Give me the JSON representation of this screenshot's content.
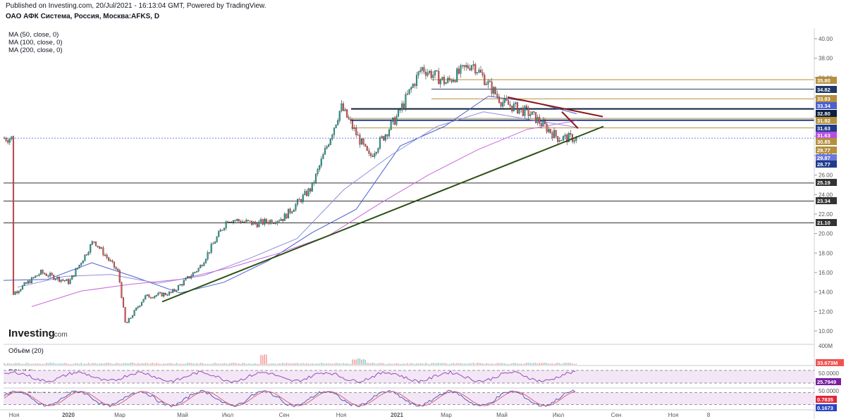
{
  "header": {
    "published": "Published on Investing.com, 20/Jul/2021 - 16:13:04 GMT, Powered by TradingView.",
    "symbol": "ОАО АФК Система, Россия, Москва:AFKS, D"
  },
  "indicators": [
    "MA (50, close, 0)",
    "MA (100, close, 0)",
    "MA (200, close, 0)"
  ],
  "logo": {
    "main": "Investing",
    "suffix": ".com"
  },
  "colors": {
    "up": "#26a69a",
    "down": "#ef5350",
    "ma50": "#4b5fd0",
    "ma100": "#8e8fe0",
    "ma200": "#cc66dd",
    "trend_up": "#2d5016",
    "trend_down": "#8b1a1a"
  },
  "chart_data": [
    {
      "type": "candlestick",
      "title": "ОАО АФК Система, Россия, Москва:AFKS, D",
      "y_ticks": [
        "10.00",
        "12.00",
        "14.00",
        "16.00",
        "18.00",
        "20.00",
        "22.00",
        "24.00",
        "26.00",
        "28.00",
        "30.00",
        "32.00",
        "34.00",
        "36.00",
        "38.00",
        "40.00"
      ],
      "ylim": [
        9,
        41
      ],
      "x_ticks": [
        "Ноя",
        "2020",
        "Мар",
        "Май",
        "Июл",
        "Сен",
        "Ноя",
        "2021",
        "Мар",
        "Май",
        "Июл",
        "Сен",
        "Ноя",
        "8"
      ],
      "price_path": [
        [
          "Ноя 2019",
          13.8
        ],
        [
          "Дек 2019",
          16.0
        ],
        [
          "Янв 2020",
          15.0
        ],
        [
          "Фев 2020",
          19.3
        ],
        [
          "Мар 2020",
          16.0
        ],
        [
          "Мар 2020",
          10.6
        ],
        [
          "Апр 2020",
          13.5
        ],
        [
          "Май 2020",
          13.9
        ],
        [
          "Июн 2020",
          16.5
        ],
        [
          "Июл 2020",
          21.5
        ],
        [
          "Авг 2020",
          21.0
        ],
        [
          "Сен 2020",
          21.6
        ],
        [
          "Окт 2020",
          24.7
        ],
        [
          "Ноя 2020",
          33.0
        ],
        [
          "Дек 2020",
          27.8
        ],
        [
          "Янв 2021",
          32.0
        ],
        [
          "Фев 2021",
          37.0
        ],
        [
          "Мар 2021",
          35.5
        ],
        [
          "Апр 2021",
          37.5
        ],
        [
          "Май 2021",
          33.5
        ],
        [
          "Июн 2021",
          32.3
        ],
        [
          "Июл 2021",
          29.8
        ]
      ],
      "moving_averages": [
        {
          "name": "MA (50, close, 0)",
          "path": [
            [
              15.2
            ],
            [
              15.3
            ],
            [
              17.0
            ],
            [
              15.5
            ],
            [
              13.9
            ],
            [
              15.0
            ],
            [
              17.2
            ],
            [
              20.1
            ],
            [
              22.5
            ],
            [
              29.0
            ],
            [
              31.0
            ],
            [
              34.1
            ],
            [
              33.5
            ],
            [
              32.3
            ]
          ]
        },
        {
          "name": "MA (100, close, 0)",
          "path": [
            [
              14.5
            ],
            [
              15.6
            ],
            [
              15.8
            ],
            [
              14.9
            ],
            [
              15.7
            ],
            [
              17.5
            ],
            [
              19.5
            ],
            [
              24.5
            ],
            [
              28.0
            ],
            [
              31.0
            ],
            [
              32.5
            ],
            [
              31.7
            ],
            [
              30.9
            ]
          ]
        },
        {
          "name": "MA (200, close, 0)",
          "path": [
            [
              12.5
            ],
            [
              14.1
            ],
            [
              14.8
            ],
            [
              15.3
            ],
            [
              16.5
            ],
            [
              18.0
            ],
            [
              19.8
            ],
            [
              23.0
            ],
            [
              26.0
            ],
            [
              28.6
            ],
            [
              30.7
            ],
            [
              31.6
            ]
          ]
        }
      ],
      "trend_lines": [
        {
          "color": "green",
          "from": [
            "Апр 2020",
            13.0
          ],
          "to": [
            "Авг 2021",
            31.0
          ]
        },
        {
          "color": "red",
          "from": [
            "Май 2021",
            34.0
          ],
          "to": [
            "Авг 2021",
            32.0
          ]
        },
        {
          "color": "red",
          "from": [
            "Июл 2021",
            32.5
          ],
          "to": [
            "Июл 2021",
            30.8
          ]
        }
      ],
      "levels": [
        {
          "value": 35.8,
          "label": "35.80",
          "type": "line",
          "color": "#b58f3d"
        },
        {
          "value": 34.82,
          "label": "34.82",
          "type": "line",
          "color": "#1f3864"
        },
        {
          "value": 33.83,
          "label": "33.83",
          "type": "line",
          "color": "#b58f3d"
        },
        {
          "value": 33.34,
          "label": "33.34",
          "type": "ma",
          "color": "#4b5fd0"
        },
        {
          "value": 32.8,
          "label": "32.80",
          "type": "line",
          "color": "#0d1f3c"
        },
        {
          "value": 31.82,
          "label": "31.82",
          "type": "line",
          "color": "#b58f3d"
        },
        {
          "value": 31.63,
          "label": "31.63",
          "type": "line",
          "color": "#1f3b8a"
        },
        {
          "value": 31.63,
          "label": "31.63",
          "type": "ma",
          "color": "#b64ee3"
        },
        {
          "value": 30.85,
          "label": "30.85",
          "type": "line",
          "color": "#b58f3d"
        },
        {
          "value": 29.77,
          "label": "29.77",
          "type": "price",
          "color": "#b58f3d"
        },
        {
          "value": 29.87,
          "label": "29.87",
          "type": "ma",
          "color": "#6a78d8"
        },
        {
          "value": 28.77,
          "label": "28.77",
          "type": "price",
          "color": "#1f3b8a"
        },
        {
          "value": 25.19,
          "label": "25.19",
          "type": "line",
          "color": "#333333"
        },
        {
          "value": 23.34,
          "label": "23.34",
          "type": "line",
          "color": "#333333"
        },
        {
          "value": 21.1,
          "label": "21.10",
          "type": "line",
          "color": "#333333"
        }
      ],
      "current_price": 29.8
    },
    {
      "type": "bar",
      "title": "Объём (20)",
      "y_ticks": [
        "400M"
      ],
      "last_value_label": "33.673M",
      "note": "volume bars, near-zero scale with occasional spikes"
    },
    {
      "type": "line",
      "title": "RSI (14)",
      "y_ticks": [
        "50.0000"
      ],
      "last_value_label": "25.7949",
      "levels": [
        70,
        30
      ]
    },
    {
      "type": "line",
      "title": "Stoch RSI (14, 14, 3, 3)",
      "y_ticks": [
        "50.0000"
      ],
      "last_value_labels": [
        "0.7835",
        "0.1673"
      ],
      "levels": [
        80,
        20
      ]
    }
  ]
}
